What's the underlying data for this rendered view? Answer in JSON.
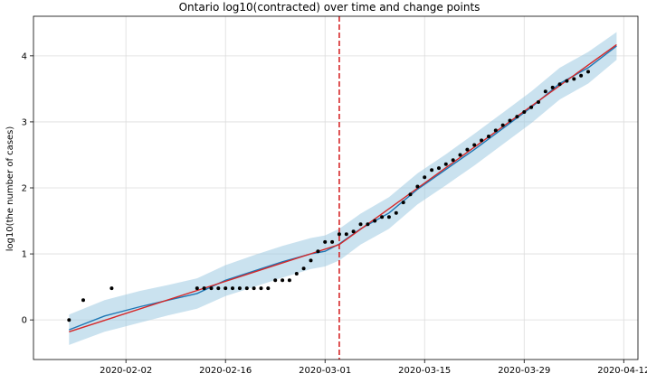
{
  "chart_data": {
    "type": "line",
    "title": "Ontario log10(contracted) over time and change points",
    "xlabel": "",
    "ylabel": "log10(the number of cases)",
    "x_tick_labels": [
      "2020-02-02",
      "2020-02-16",
      "2020-03-01",
      "2020-03-15",
      "2020-03-29",
      "2020-04-12"
    ],
    "y_tick_labels": [
      "0",
      "1",
      "2",
      "3",
      "4"
    ],
    "xlim": [
      "2020-01-20",
      "2020-04-14"
    ],
    "ylim": [
      -0.6,
      4.6
    ],
    "grid": true,
    "colors": {
      "observed": "#000000",
      "forecast": "#1f77b4",
      "trend": "#d62728",
      "band": "#9ecae1",
      "changepoint": "#d62728"
    },
    "changepoints": [
      "2020-03-03"
    ],
    "observed": {
      "x": [
        "2020-01-25",
        "2020-01-27",
        "2020-01-31",
        "2020-02-12",
        "2020-02-13",
        "2020-02-14",
        "2020-02-15",
        "2020-02-16",
        "2020-02-17",
        "2020-02-18",
        "2020-02-19",
        "2020-02-20",
        "2020-02-21",
        "2020-02-22",
        "2020-02-23",
        "2020-02-24",
        "2020-02-25",
        "2020-02-26",
        "2020-02-27",
        "2020-02-28",
        "2020-02-29",
        "2020-03-01",
        "2020-03-02",
        "2020-03-03",
        "2020-03-04",
        "2020-03-05",
        "2020-03-06",
        "2020-03-07",
        "2020-03-08",
        "2020-03-09",
        "2020-03-10",
        "2020-03-11",
        "2020-03-12",
        "2020-03-13",
        "2020-03-14",
        "2020-03-15",
        "2020-03-16",
        "2020-03-17",
        "2020-03-18",
        "2020-03-19",
        "2020-03-20",
        "2020-03-21",
        "2020-03-22",
        "2020-03-23",
        "2020-03-24",
        "2020-03-25",
        "2020-03-26",
        "2020-03-27",
        "2020-03-28",
        "2020-03-29",
        "2020-03-30",
        "2020-03-31",
        "2020-04-01",
        "2020-04-02",
        "2020-04-03",
        "2020-04-04",
        "2020-04-05",
        "2020-04-06",
        "2020-04-07"
      ],
      "y": [
        0,
        0.3,
        0.48,
        0.48,
        0.48,
        0.48,
        0.48,
        0.48,
        0.48,
        0.48,
        0.48,
        0.48,
        0.48,
        0.48,
        0.6,
        0.6,
        0.6,
        0.7,
        0.78,
        0.9,
        1.04,
        1.18,
        1.18,
        1.3,
        1.3,
        1.34,
        1.45,
        1.45,
        1.5,
        1.56,
        1.56,
        1.62,
        1.78,
        1.9,
        2.02,
        2.16,
        2.27,
        2.3,
        2.36,
        2.42,
        2.5,
        2.58,
        2.65,
        2.72,
        2.78,
        2.87,
        2.95,
        3.02,
        3.08,
        3.15,
        3.22,
        3.3,
        3.46,
        3.52,
        3.57,
        3.62,
        3.65,
        3.7,
        3.76
      ]
    },
    "forecast": {
      "x": [
        "2020-01-25",
        "2020-01-30",
        "2020-02-04",
        "2020-02-08",
        "2020-02-12",
        "2020-02-16",
        "2020-02-20",
        "2020-02-24",
        "2020-02-28",
        "2020-03-01",
        "2020-03-03",
        "2020-03-06",
        "2020-03-10",
        "2020-03-14",
        "2020-03-18",
        "2020-03-22",
        "2020-03-26",
        "2020-03-30",
        "2020-04-03",
        "2020-04-07",
        "2020-04-11"
      ],
      "y": [
        -0.15,
        0.06,
        0.2,
        0.3,
        0.4,
        0.6,
        0.74,
        0.88,
        1.0,
        1.04,
        1.15,
        1.38,
        1.62,
        1.98,
        2.28,
        2.58,
        2.9,
        3.22,
        3.58,
        3.82,
        4.15
      ],
      "lower": [
        -0.38,
        -0.18,
        -0.04,
        0.07,
        0.17,
        0.36,
        0.5,
        0.64,
        0.77,
        0.81,
        0.9,
        1.14,
        1.38,
        1.75,
        2.04,
        2.34,
        2.66,
        2.98,
        3.34,
        3.58,
        3.94
      ],
      "upper": [
        0.08,
        0.3,
        0.44,
        0.53,
        0.63,
        0.83,
        0.98,
        1.12,
        1.24,
        1.28,
        1.38,
        1.61,
        1.86,
        2.22,
        2.51,
        2.82,
        3.14,
        3.46,
        3.82,
        4.06,
        4.36
      ]
    },
    "trend": {
      "x": [
        "2020-01-25",
        "2020-03-03",
        "2020-04-11"
      ],
      "y": [
        -0.18,
        1.14,
        4.17
      ]
    }
  }
}
